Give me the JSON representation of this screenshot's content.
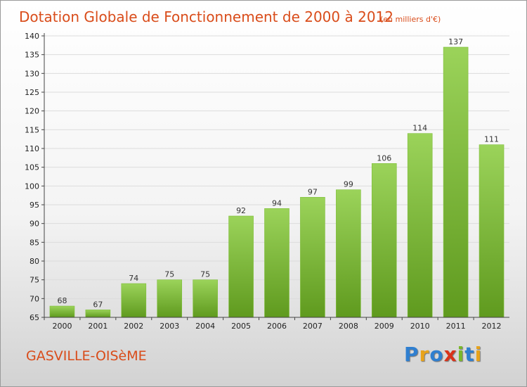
{
  "chart_data": {
    "type": "bar",
    "title": "Dotation Globale de Fonctionnement de 2000 à 2012",
    "unit_note": "(en milliers d'€)",
    "categories": [
      "2000",
      "2001",
      "2002",
      "2003",
      "2004",
      "2005",
      "2006",
      "2007",
      "2008",
      "2009",
      "2010",
      "2011",
      "2012"
    ],
    "values": [
      68,
      67,
      74,
      75,
      75,
      92,
      94,
      97,
      99,
      106,
      114,
      137,
      111
    ],
    "ylim": [
      65,
      140
    ],
    "yticks": [
      65,
      70,
      75,
      80,
      85,
      90,
      95,
      100,
      105,
      110,
      115,
      120,
      125,
      130,
      135,
      140
    ],
    "grid": true,
    "bar_color_top": "#9bd35a",
    "bar_color_bottom": "#5f9a1e"
  },
  "commune": "GASVILLE-OISèME",
  "logo": {
    "letters": [
      {
        "ch": "P",
        "color": "#2f7fd0"
      },
      {
        "ch": "r",
        "color": "#e8a31a"
      },
      {
        "ch": "o",
        "color": "#2f7fd0"
      },
      {
        "ch": "x",
        "color": "#d9331a"
      },
      {
        "ch": "i",
        "color": "#7ab82a"
      },
      {
        "ch": "t",
        "color": "#2f7fd0"
      },
      {
        "ch": "i",
        "color": "#e8a31a"
      }
    ]
  }
}
